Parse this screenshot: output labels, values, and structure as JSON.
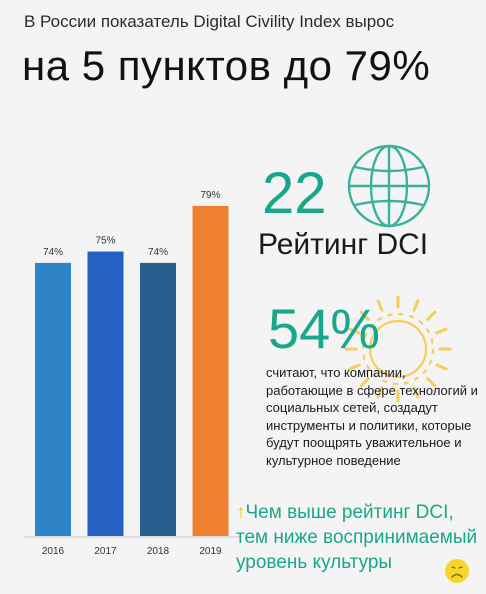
{
  "header": {
    "subtitle": "В России показатель Digital Civility Index вырос",
    "headline": "на 5 пунктов до 79%"
  },
  "rank": {
    "value": "22",
    "label": "Рейтинг DCI"
  },
  "survey": {
    "percent": "54%",
    "text": "считают, что компании, работающие в сфере технологий и социальных сетей, создадут инструменты и политики, которые будут поощрять уважительное и культурное поведение"
  },
  "note": {
    "arrow": "↑",
    "lines": [
      "Чем выше рейтинг DCI,",
      "тем ниже воспринимаемый",
      "уровень культуры"
    ]
  },
  "icons": {
    "globe": "globe-icon",
    "sun": "sun-icon",
    "face": "frowning-face-icon"
  },
  "colors": {
    "accent_teal": "#1aa68a",
    "sun_yellow": "#f5c842"
  },
  "chart_data": {
    "type": "bar",
    "categories": [
      "2016",
      "2017",
      "2018",
      "2019"
    ],
    "values": [
      74,
      75,
      74,
      79
    ],
    "value_labels": [
      "74%",
      "75%",
      "74%",
      "79%"
    ],
    "colors": [
      "#2f84c8",
      "#2660c2",
      "#285f8e",
      "#f08030"
    ],
    "ylim": [
      50,
      80
    ],
    "grid": false,
    "legend": "none"
  }
}
